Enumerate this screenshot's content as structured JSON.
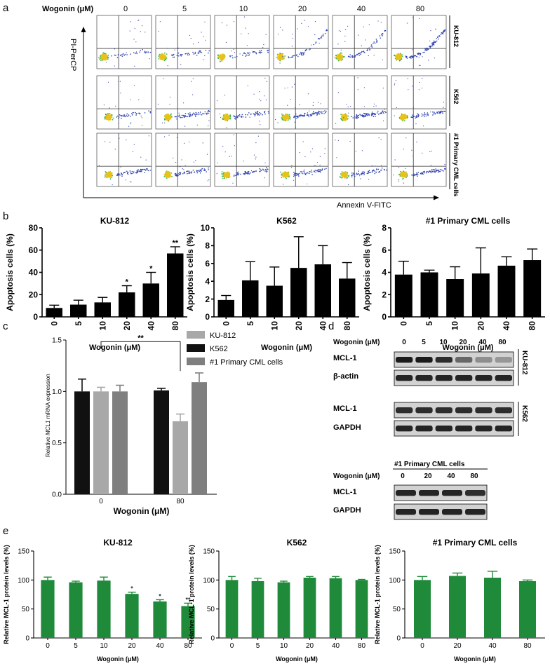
{
  "panel_labels": {
    "a": "a",
    "b": "b",
    "c": "c",
    "d": "d",
    "e": "e"
  },
  "panel_a": {
    "wogonin_label": "Wogonin (μM)",
    "concentrations": [
      "0",
      "5",
      "10",
      "20",
      "40",
      "80"
    ],
    "y_axis_label": "PI-PerCP",
    "x_axis_label": "Annexin V-FITC",
    "row_labels": [
      "KU-812",
      "K562",
      "#1 Primary CML cells"
    ]
  },
  "panel_b": {
    "x_label": "Wogonin (μM)",
    "y_label": "Apoptosis cells (%)"
  },
  "panel_c": {
    "y_label_prefix": "Relative ",
    "y_label_gene": "MCL1",
    "y_label_suffix": " mRNA expression",
    "x_label": "Wogonin (μM)",
    "significance": "**"
  },
  "panel_d": {
    "wogonin_label": "Wogonin (μM)",
    "concentrations_top": [
      "0",
      "5",
      "10",
      "20",
      "40",
      "80"
    ],
    "blots_top": [
      "MCL-1",
      "β-actin",
      "MCL-1",
      "GAPDH"
    ],
    "cell_lines_top": [
      "KU-812",
      "K562"
    ],
    "primary_title": "#1 Primary CML cells",
    "concentrations_bottom": [
      "0",
      "20",
      "40",
      "80"
    ],
    "blots_bottom": [
      "MCL-1",
      "GAPDH"
    ]
  },
  "panel_e": {
    "x_label": "Wogonin (μM)",
    "y_label": "Relative MCL-1 protein levels (%)"
  },
  "chart_data": [
    {
      "id": "b1",
      "type": "bar",
      "title": "KU-812",
      "categories": [
        "0",
        "5",
        "10",
        "20",
        "40",
        "80"
      ],
      "values": [
        8,
        11,
        13,
        22,
        30,
        57
      ],
      "errors": [
        2.5,
        4,
        4.5,
        6,
        10,
        6
      ],
      "significance": [
        "",
        "",
        "",
        "*",
        "*",
        "**"
      ],
      "xlabel": "Wogonin (μM)",
      "ylabel": "Apoptosis cells (%)",
      "ylim": [
        0,
        80
      ],
      "yticks": [
        0,
        20,
        40,
        60,
        80
      ]
    },
    {
      "id": "b2",
      "type": "bar",
      "title": "K562",
      "categories": [
        "0",
        "5",
        "10",
        "20",
        "40",
        "80"
      ],
      "values": [
        1.9,
        4.1,
        3.5,
        5.5,
        5.9,
        4.3
      ],
      "errors": [
        0.5,
        2.1,
        2.1,
        3.5,
        2.1,
        1.8
      ],
      "significance": [
        "",
        "",
        "",
        "",
        "",
        ""
      ],
      "xlabel": "Wogonin (μM)",
      "ylabel": "Apoptosis cells (%)",
      "ylim": [
        0,
        10
      ],
      "yticks": [
        0,
        2,
        4,
        6,
        8,
        10
      ]
    },
    {
      "id": "b3",
      "type": "bar",
      "title": "#1 Primary CML cells",
      "categories": [
        "0",
        "5",
        "10",
        "20",
        "40",
        "80"
      ],
      "values": [
        3.8,
        4.0,
        3.4,
        3.9,
        4.6,
        5.1
      ],
      "errors": [
        1.2,
        0.2,
        1.1,
        2.3,
        0.8,
        1.0
      ],
      "significance": [
        "",
        "",
        "",
        "",
        "",
        ""
      ],
      "xlabel": "Wogonin (μM)",
      "ylabel": "Apoptosis cells (%)",
      "ylim": [
        0,
        8
      ],
      "yticks": [
        0,
        2,
        4,
        6,
        8
      ]
    },
    {
      "id": "c",
      "type": "bar",
      "groups": [
        "0",
        "80"
      ],
      "series": [
        {
          "name": "KU-812",
          "color": "#a8a8a8",
          "values": [
            1.0,
            0.71
          ],
          "errors": [
            0.04,
            0.07
          ]
        },
        {
          "name": "K562",
          "color": "#111111",
          "values": [
            1.0,
            1.01
          ],
          "errors": [
            0.12,
            0.02
          ]
        },
        {
          "name": "#1 Primary CML cells",
          "color": "#7f7f7f",
          "values": [
            1.0,
            1.09
          ],
          "errors": [
            0.06,
            0.09
          ]
        }
      ],
      "xlabel": "Wogonin (μM)",
      "ylim": [
        0,
        1.5
      ],
      "yticks": [
        "0.0",
        "0.5",
        "1.0",
        "1.5"
      ]
    },
    {
      "id": "e1",
      "type": "bar",
      "title": "KU-812",
      "categories": [
        "0",
        "5",
        "10",
        "20",
        "40",
        "80"
      ],
      "values": [
        100,
        96,
        99,
        76,
        63,
        55
      ],
      "errors": [
        5,
        2,
        6,
        3,
        3,
        5
      ],
      "significance": [
        "",
        "",
        "",
        "*",
        "*",
        "**"
      ],
      "xlabel": "Wogonin (μM)",
      "ylabel": "Relative MCL-1 protein levels (%)",
      "ylim": [
        0,
        150
      ],
      "yticks": [
        0,
        50,
        100,
        150
      ]
    },
    {
      "id": "e2",
      "type": "bar",
      "title": "K562",
      "categories": [
        "0",
        "5",
        "10",
        "20",
        "40",
        "80"
      ],
      "values": [
        100,
        98,
        96,
        104,
        103,
        100
      ],
      "errors": [
        6,
        5,
        2,
        2,
        3,
        1
      ],
      "significance": [
        "",
        "",
        "",
        "",
        "",
        ""
      ],
      "xlabel": "Wogonin (μM)",
      "ylabel": "Relative MCL-1 protein levels (%)",
      "ylim": [
        0,
        150
      ],
      "yticks": [
        0,
        50,
        100,
        150
      ]
    },
    {
      "id": "e3",
      "type": "bar",
      "title": "#1 Primary CML cells",
      "categories": [
        "0",
        "20",
        "40",
        "80"
      ],
      "values": [
        100,
        107,
        104,
        98
      ],
      "errors": [
        6,
        5,
        11,
        2
      ],
      "significance": [
        "",
        "",
        "",
        ""
      ],
      "xlabel": "Wogonin (μM)",
      "ylabel": "Relative MCL-1 protein levels (%)",
      "ylim": [
        0,
        150
      ],
      "yticks": [
        0,
        50,
        100,
        150
      ]
    }
  ]
}
